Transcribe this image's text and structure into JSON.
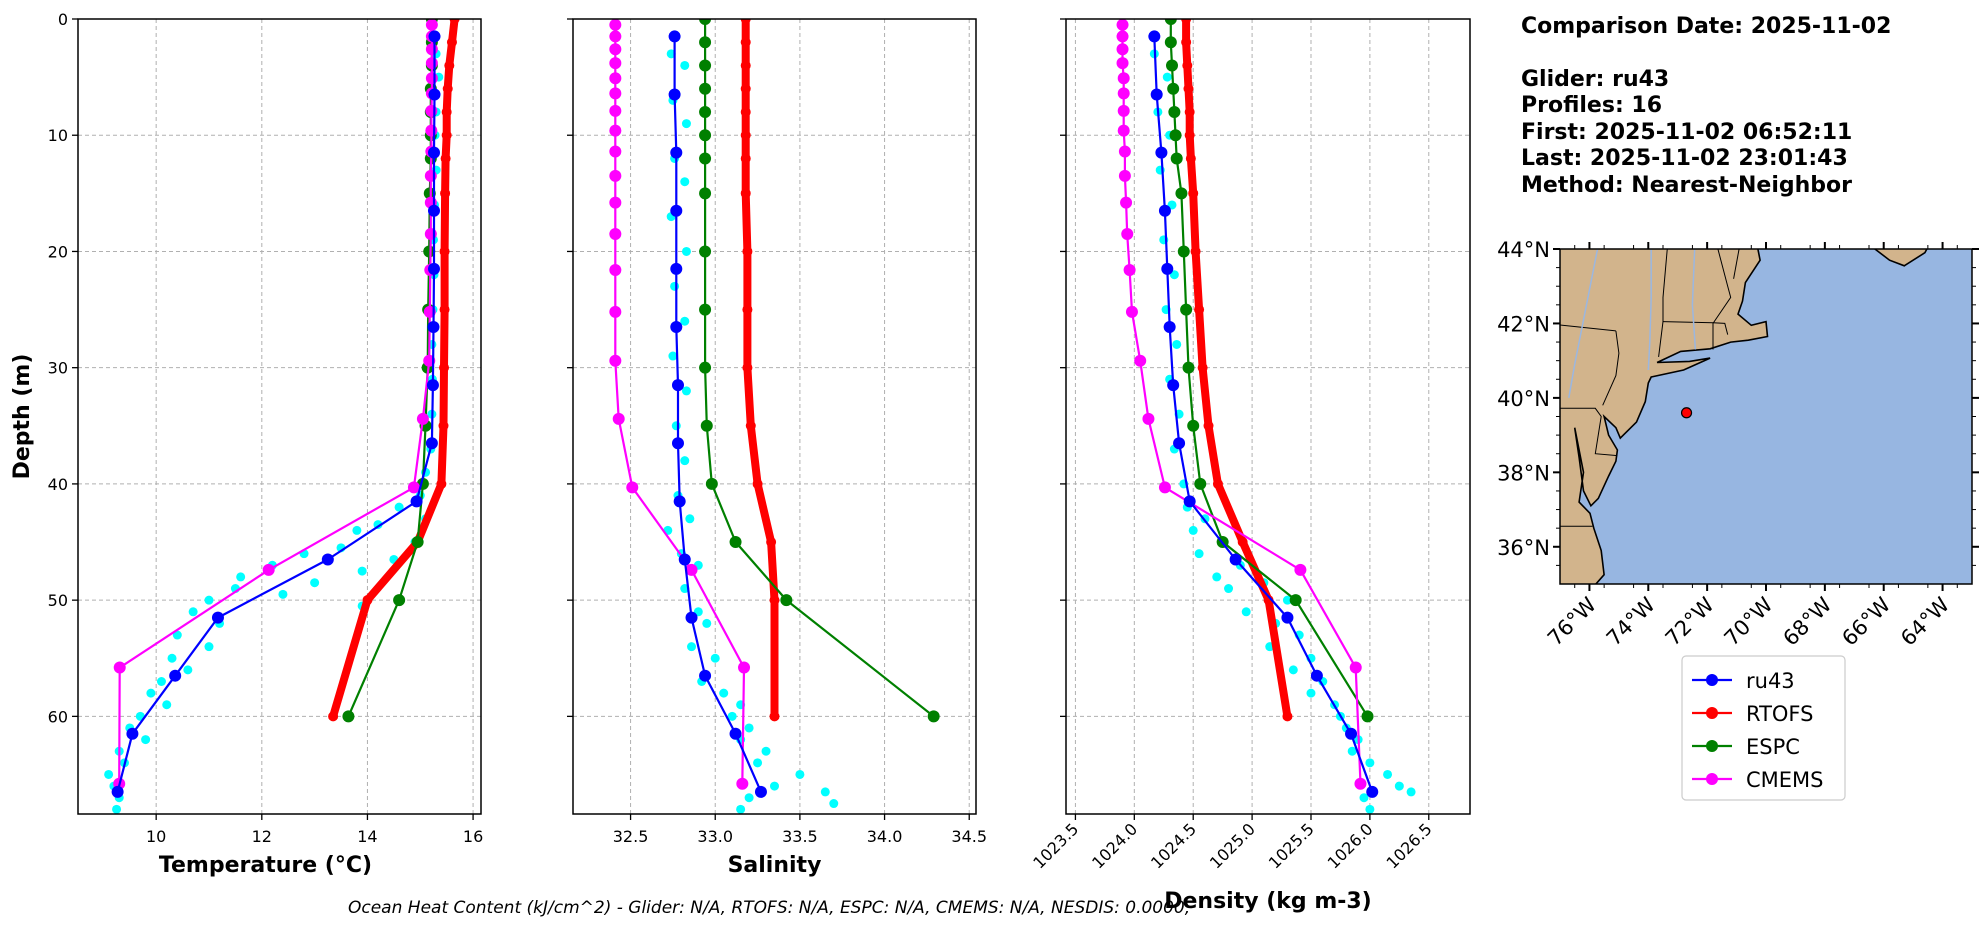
{
  "info": {
    "comparison_date": "Comparison Date: 2025-11-02",
    "glider": "Glider: ru43",
    "profiles": "Profiles: 16",
    "first": "First: 2025-11-02 06:52:11",
    "last": "Last: 2025-11-02 23:01:43",
    "method": "Method: Nearest-Neighbor"
  },
  "footer": "Ocean Heat Content (kJ/cm^2) - Glider: N/A,  RTOFS: N/A,  ESPC: N/A,  CMEMS: N/A,  NESDIS: 0.0000,",
  "colors": {
    "ru43": "#0000ff",
    "RTOFS": "#ff0000",
    "ESPC": "#008000",
    "CMEMS": "#ff00ff",
    "raw": "#00ffff",
    "ocean": "#97b6e1",
    "land": "#d2b48c"
  },
  "chart_data": [
    {
      "type": "line",
      "xlabel": "Temperature (°C)",
      "ylabel": "Depth (m)",
      "xlim": [
        8.52,
        16.15
      ],
      "ylim": [
        68.4,
        0
      ],
      "xticks": [
        10,
        12,
        14,
        16
      ],
      "yticks": [
        0,
        10,
        20,
        30,
        40,
        50,
        60
      ],
      "grid": true,
      "raw": [
        [
          3,
          15.3
        ],
        [
          5,
          15.35
        ],
        [
          8,
          15.3
        ],
        [
          10,
          15.28
        ],
        [
          13,
          15.3
        ],
        [
          16,
          15.27
        ],
        [
          19,
          15.25
        ],
        [
          22,
          15.26
        ],
        [
          25,
          15.24
        ],
        [
          28,
          15.22
        ],
        [
          31,
          15.23
        ],
        [
          34,
          15.22
        ],
        [
          37,
          15.2
        ],
        [
          39,
          15.1
        ],
        [
          41,
          15.0
        ],
        [
          42,
          14.6
        ],
        [
          43,
          15.1
        ],
        [
          43.5,
          14.2
        ],
        [
          44,
          13.8
        ],
        [
          45,
          14.9
        ],
        [
          45.5,
          13.5
        ],
        [
          46,
          12.8
        ],
        [
          46.5,
          14.5
        ],
        [
          47,
          12.2
        ],
        [
          47.5,
          13.9
        ],
        [
          48,
          11.6
        ],
        [
          48.5,
          13.0
        ],
        [
          49,
          11.5
        ],
        [
          49.5,
          12.4
        ],
        [
          50,
          11.0
        ],
        [
          50.5,
          13.9
        ],
        [
          51,
          10.7
        ],
        [
          52,
          11.2
        ],
        [
          53,
          10.4
        ],
        [
          54,
          11.0
        ],
        [
          55,
          10.3
        ],
        [
          56,
          10.6
        ],
        [
          57,
          10.1
        ],
        [
          58,
          9.9
        ],
        [
          59,
          10.2
        ],
        [
          60,
          9.7
        ],
        [
          61,
          9.5
        ],
        [
          62,
          9.8
        ],
        [
          63,
          9.3
        ],
        [
          64,
          9.4
        ],
        [
          65,
          9.1
        ],
        [
          66,
          9.2
        ],
        [
          67,
          9.3
        ],
        [
          68,
          9.25
        ]
      ],
      "series": [
        {
          "name": "RTOFS",
          "depth": [
            0,
            2,
            4,
            6,
            8,
            10,
            12,
            15,
            20,
            25,
            30,
            35,
            40,
            45,
            50,
            60
          ],
          "values": [
            15.65,
            15.6,
            15.55,
            15.52,
            15.5,
            15.5,
            15.48,
            15.47,
            15.46,
            15.46,
            15.45,
            15.44,
            15.4,
            14.95,
            14.0,
            13.35
          ]
        },
        {
          "name": "ESPC",
          "depth": [
            0,
            2,
            4,
            6,
            8,
            10,
            12,
            15,
            20,
            25,
            30,
            35,
            40,
            45,
            50,
            60
          ],
          "values": [
            15.22,
            15.22,
            15.22,
            15.2,
            15.2,
            15.2,
            15.2,
            15.18,
            15.17,
            15.15,
            15.14,
            15.1,
            15.05,
            14.95,
            14.6,
            13.64
          ]
        },
        {
          "name": "CMEMS",
          "depth": [
            0.5,
            1.5,
            2.6,
            3.8,
            5.1,
            6.4,
            7.9,
            9.6,
            11.4,
            13.5,
            15.8,
            18.5,
            21.6,
            25.2,
            29.4,
            34.4,
            40.3,
            47.4,
            55.8,
            65.8
          ],
          "values": [
            15.22,
            15.22,
            15.22,
            15.22,
            15.22,
            15.22,
            15.21,
            15.21,
            15.21,
            15.2,
            15.2,
            15.2,
            15.19,
            15.18,
            15.17,
            15.05,
            14.88,
            12.13,
            9.31,
            9.3
          ]
        },
        {
          "name": "ru43",
          "depth": [
            1.5,
            6.5,
            11.5,
            16.5,
            21.5,
            26.5,
            31.5,
            36.5,
            41.5,
            46.5,
            51.5,
            56.5,
            61.5,
            66.5
          ],
          "values": [
            15.27,
            15.27,
            15.26,
            15.26,
            15.26,
            15.25,
            15.24,
            15.22,
            14.93,
            13.25,
            11.17,
            10.36,
            9.55,
            9.27
          ]
        }
      ]
    },
    {
      "type": "line",
      "xlabel": "Salinity",
      "xlim": [
        32.16,
        34.54
      ],
      "ylim": [
        68.4,
        0
      ],
      "xticks": [
        32.5,
        33.0,
        33.5,
        34.0,
        34.5
      ],
      "yticks": [
        0,
        10,
        20,
        30,
        40,
        50,
        60
      ],
      "grid": true,
      "raw": [
        [
          3,
          32.74
        ],
        [
          4,
          32.82
        ],
        [
          7,
          32.75
        ],
        [
          9,
          32.83
        ],
        [
          12,
          32.76
        ],
        [
          14,
          32.82
        ],
        [
          17,
          32.74
        ],
        [
          20,
          32.83
        ],
        [
          23,
          32.76
        ],
        [
          26,
          32.82
        ],
        [
          29,
          32.75
        ],
        [
          32,
          32.83
        ],
        [
          35,
          32.77
        ],
        [
          38,
          32.82
        ],
        [
          41,
          32.78
        ],
        [
          43,
          32.85
        ],
        [
          44,
          32.72
        ],
        [
          46,
          32.8
        ],
        [
          47,
          32.9
        ],
        [
          49,
          32.82
        ],
        [
          51,
          32.9
        ],
        [
          52,
          32.95
        ],
        [
          54,
          32.86
        ],
        [
          55,
          33.0
        ],
        [
          57,
          32.92
        ],
        [
          58,
          33.05
        ],
        [
          59,
          33.15
        ],
        [
          60,
          33.1
        ],
        [
          61,
          33.2
        ],
        [
          62,
          33.15
        ],
        [
          63,
          33.3
        ],
        [
          64,
          33.25
        ],
        [
          65,
          33.5
        ],
        [
          66,
          33.35
        ],
        [
          66.5,
          33.65
        ],
        [
          67,
          33.2
        ],
        [
          67.5,
          33.7
        ],
        [
          68,
          33.15
        ]
      ],
      "series": [
        {
          "name": "RTOFS",
          "depth": [
            0,
            2,
            4,
            6,
            8,
            10,
            12,
            15,
            20,
            25,
            30,
            35,
            40,
            45,
            50,
            60
          ],
          "values": [
            33.18,
            33.18,
            33.18,
            33.18,
            33.18,
            33.18,
            33.18,
            33.18,
            33.19,
            33.19,
            33.19,
            33.21,
            33.25,
            33.33,
            33.35,
            33.35
          ]
        },
        {
          "name": "ESPC",
          "depth": [
            0,
            2,
            4,
            6,
            8,
            10,
            12,
            15,
            20,
            25,
            30,
            35,
            40,
            45,
            50,
            60
          ],
          "values": [
            32.94,
            32.94,
            32.94,
            32.94,
            32.94,
            32.94,
            32.94,
            32.94,
            32.94,
            32.94,
            32.94,
            32.95,
            32.98,
            33.12,
            33.42,
            34.29
          ]
        },
        {
          "name": "CMEMS",
          "depth": [
            0.5,
            1.5,
            2.6,
            3.8,
            5.1,
            6.4,
            7.9,
            9.6,
            11.4,
            13.5,
            15.8,
            18.5,
            21.6,
            25.2,
            29.4,
            34.4,
            40.3,
            47.4,
            55.8,
            65.8
          ],
          "values": [
            32.41,
            32.41,
            32.41,
            32.41,
            32.41,
            32.41,
            32.41,
            32.41,
            32.41,
            32.41,
            32.41,
            32.41,
            32.41,
            32.41,
            32.41,
            32.43,
            32.51,
            32.86,
            33.17,
            33.16
          ]
        },
        {
          "name": "ru43",
          "depth": [
            1.5,
            6.5,
            11.5,
            16.5,
            21.5,
            26.5,
            31.5,
            36.5,
            41.5,
            46.5,
            51.5,
            56.5,
            61.5,
            66.5
          ],
          "values": [
            32.76,
            32.76,
            32.77,
            32.77,
            32.77,
            32.77,
            32.78,
            32.78,
            32.79,
            32.82,
            32.86,
            32.94,
            33.12,
            33.27
          ]
        }
      ]
    },
    {
      "type": "line",
      "xlabel": "Density (kg m-3)",
      "xlim": [
        1023.42,
        1026.85
      ],
      "ylim": [
        68.4,
        0
      ],
      "xticks": [
        1023.5,
        1024.0,
        1024.5,
        1025.0,
        1025.5,
        1026.0,
        1026.5
      ],
      "yticks": [
        0,
        10,
        20,
        30,
        40,
        50,
        60
      ],
      "grid": true,
      "raw": [
        [
          3,
          1024.17
        ],
        [
          5,
          1024.28
        ],
        [
          8,
          1024.2
        ],
        [
          10,
          1024.3
        ],
        [
          13,
          1024.22
        ],
        [
          16,
          1024.32
        ],
        [
          19,
          1024.25
        ],
        [
          22,
          1024.34
        ],
        [
          25,
          1024.27
        ],
        [
          28,
          1024.36
        ],
        [
          31,
          1024.3
        ],
        [
          34,
          1024.38
        ],
        [
          37,
          1024.34
        ],
        [
          40,
          1024.42
        ],
        [
          42,
          1024.45
        ],
        [
          43,
          1024.6
        ],
        [
          44,
          1024.5
        ],
        [
          45,
          1024.75
        ],
        [
          46,
          1024.55
        ],
        [
          47,
          1024.9
        ],
        [
          48,
          1024.7
        ],
        [
          48.5,
          1025.1
        ],
        [
          49,
          1024.8
        ],
        [
          50,
          1025.3
        ],
        [
          51,
          1024.95
        ],
        [
          52,
          1025.2
        ],
        [
          53,
          1025.4
        ],
        [
          54,
          1025.15
        ],
        [
          55,
          1025.5
        ],
        [
          56,
          1025.35
        ],
        [
          57,
          1025.6
        ],
        [
          58,
          1025.5
        ],
        [
          59,
          1025.7
        ],
        [
          60,
          1025.75
        ],
        [
          61,
          1025.8
        ],
        [
          62,
          1025.9
        ],
        [
          63,
          1025.85
        ],
        [
          64,
          1026.0
        ],
        [
          65,
          1026.15
        ],
        [
          66,
          1026.25
        ],
        [
          66.5,
          1026.35
        ],
        [
          67,
          1025.95
        ],
        [
          68,
          1026.0
        ]
      ],
      "series": [
        {
          "name": "RTOFS",
          "depth": [
            0,
            2,
            4,
            6,
            8,
            10,
            12,
            15,
            20,
            25,
            30,
            35,
            40,
            45,
            50,
            60
          ],
          "values": [
            1024.44,
            1024.44,
            1024.45,
            1024.46,
            1024.47,
            1024.47,
            1024.48,
            1024.5,
            1024.52,
            1024.55,
            1024.58,
            1024.63,
            1024.71,
            1024.92,
            1025.14,
            1025.3
          ]
        },
        {
          "name": "ESPC",
          "depth": [
            0,
            2,
            4,
            6,
            8,
            10,
            12,
            15,
            20,
            25,
            30,
            35,
            40,
            45,
            50,
            60
          ],
          "values": [
            1024.31,
            1024.31,
            1024.32,
            1024.33,
            1024.34,
            1024.35,
            1024.36,
            1024.4,
            1024.42,
            1024.44,
            1024.46,
            1024.5,
            1024.56,
            1024.75,
            1025.37,
            1025.98
          ]
        },
        {
          "name": "CMEMS",
          "depth": [
            0.5,
            1.5,
            2.6,
            3.8,
            5.1,
            6.4,
            7.9,
            9.6,
            11.4,
            13.5,
            15.8,
            18.5,
            21.6,
            25.2,
            29.4,
            34.4,
            40.3,
            47.4,
            55.8,
            65.8
          ],
          "values": [
            1023.9,
            1023.9,
            1023.9,
            1023.9,
            1023.91,
            1023.91,
            1023.91,
            1023.91,
            1023.92,
            1023.92,
            1023.93,
            1023.94,
            1023.96,
            1023.98,
            1024.05,
            1024.12,
            1024.26,
            1025.41,
            1025.88,
            1025.92
          ]
        },
        {
          "name": "ru43",
          "depth": [
            1.5,
            6.5,
            11.5,
            16.5,
            21.5,
            26.5,
            31.5,
            36.5,
            41.5,
            46.5,
            51.5,
            56.5,
            61.5,
            66.5
          ],
          "values": [
            1024.17,
            1024.19,
            1024.23,
            1024.26,
            1024.28,
            1024.3,
            1024.33,
            1024.38,
            1024.47,
            1024.86,
            1025.3,
            1025.55,
            1025.84,
            1026.02
          ]
        }
      ]
    }
  ],
  "map": {
    "lon_range": [
      -77,
      -63
    ],
    "lat_range": [
      35,
      44
    ],
    "lat_ticks": [
      36,
      38,
      40,
      42,
      44
    ],
    "lat_labels": [
      "36°N",
      "38°N",
      "40°N",
      "42°N",
      "44°N"
    ],
    "lon_ticks": [
      -76,
      -74,
      -72,
      -70,
      -68,
      -66,
      -64
    ],
    "lon_labels": [
      "76°W",
      "74°W",
      "72°W",
      "70°W",
      "68°W",
      "66°W",
      "64°W"
    ],
    "glider_position": [
      -72.7,
      39.6
    ]
  },
  "legend": {
    "placement": "below-map",
    "entries": [
      "ru43",
      "RTOFS",
      "ESPC",
      "CMEMS"
    ]
  }
}
